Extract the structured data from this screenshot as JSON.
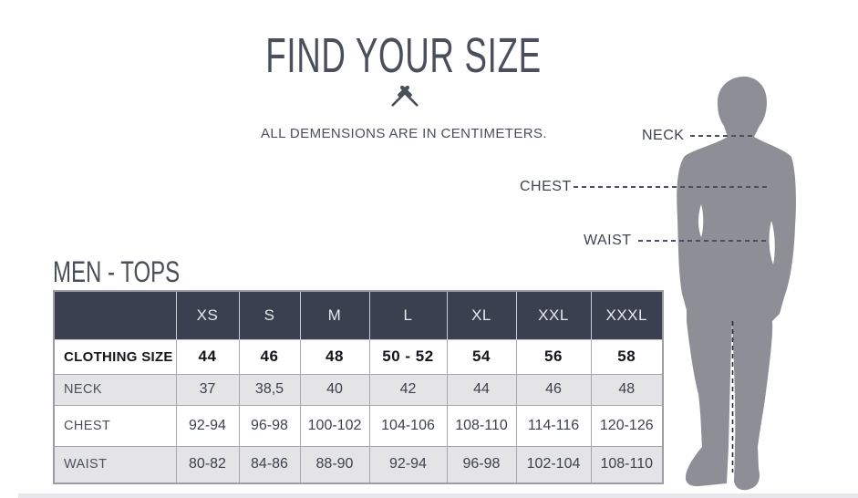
{
  "page": {
    "title": "FIND YOUR SIZE",
    "subtitle": "ALL DEMENSIONS ARE IN CENTIMETERS.",
    "section_heading": "MEN - TOPS"
  },
  "figure": {
    "description": "grey silhouette of a man in a suit, back view, with dashed measurement lines",
    "measurements": [
      {
        "label": "NECK"
      },
      {
        "label": "CHEST"
      },
      {
        "label": "WAIST"
      }
    ]
  },
  "size_table": {
    "columns": [
      "",
      "XS",
      "S",
      "M",
      "L",
      "XL",
      "XXL",
      "XXXL"
    ],
    "rows": [
      {
        "label": "CLOTHING SIZE",
        "bold": true,
        "values": [
          "44",
          "46",
          "48",
          "50 - 52",
          "54",
          "56",
          "58"
        ]
      },
      {
        "label": "NECK",
        "bold": false,
        "values": [
          "37",
          "38,5",
          "40",
          "42",
          "44",
          "46",
          "48"
        ]
      },
      {
        "label": "CHEST",
        "bold": false,
        "values": [
          "92-94",
          "96-98",
          "100-102",
          "104-106",
          "108-110",
          "114-116",
          "120-126"
        ]
      },
      {
        "label": "WAIST",
        "bold": false,
        "values": [
          "80-82",
          "84-86",
          "88-90",
          "92-94",
          "96-98",
          "102-104",
          "108-110"
        ]
      }
    ]
  },
  "colors": {
    "header_bg": "#3A4050",
    "row_alt_bg": "#E4E4E7",
    "silhouette": "#8E8E97",
    "text": "#454A57"
  }
}
